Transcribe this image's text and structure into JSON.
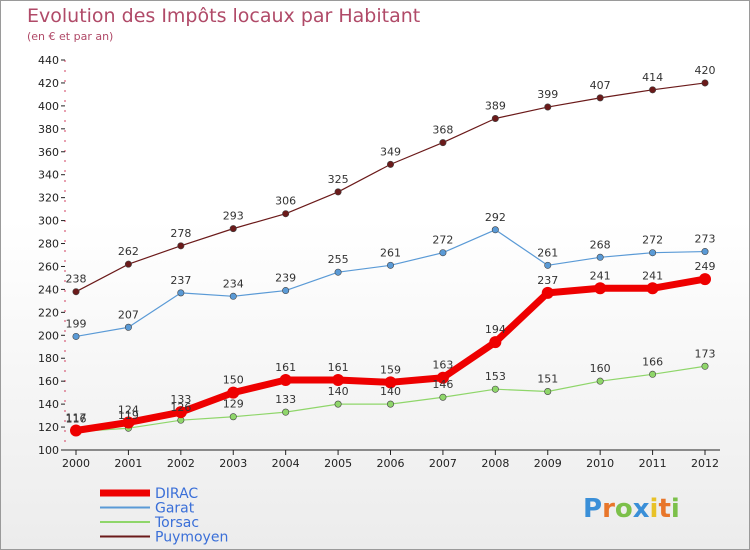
{
  "chart_data": {
    "type": "line",
    "title": "Evolution des Impôts locaux par Habitant",
    "subtitle": "(en € et par an)",
    "x": [
      "2000",
      "2001",
      "2002",
      "2003",
      "2004",
      "2005",
      "2006",
      "2007",
      "2008",
      "2009",
      "2010",
      "2011",
      "2012"
    ],
    "ylim": [
      100,
      440
    ],
    "yticks": [
      100,
      120,
      140,
      160,
      180,
      200,
      220,
      240,
      260,
      280,
      300,
      320,
      340,
      360,
      380,
      400,
      420,
      440
    ],
    "grid": false,
    "legend_position": "bottom-left",
    "series": [
      {
        "name": "DIRAC",
        "color": "#ee0000",
        "values": [
          117,
          124,
          133,
          150,
          161,
          161,
          159,
          163,
          194,
          237,
          241,
          241,
          249
        ]
      },
      {
        "name": "Garat",
        "color": "#5a9ad6",
        "values": [
          199,
          207,
          237,
          234,
          239,
          255,
          261,
          272,
          292,
          261,
          268,
          272,
          273
        ]
      },
      {
        "name": "Torsac",
        "color": "#8fd66a",
        "values": [
          116,
          119,
          126,
          129,
          133,
          140,
          140,
          146,
          153,
          151,
          160,
          166,
          173
        ]
      },
      {
        "name": "Puymoyen",
        "color": "#6b1a1a",
        "values": [
          238,
          262,
          278,
          293,
          306,
          325,
          349,
          368,
          389,
          399,
          407,
          414,
          420
        ]
      }
    ]
  },
  "logo": {
    "letters": [
      "P",
      "r",
      "o",
      "x",
      "i",
      "t",
      "i"
    ],
    "colors": [
      "#3a8fd8",
      "#e8762a",
      "#7cc04a",
      "#3a8fd8",
      "#e8c228",
      "#e8762a",
      "#7cc04a"
    ]
  }
}
